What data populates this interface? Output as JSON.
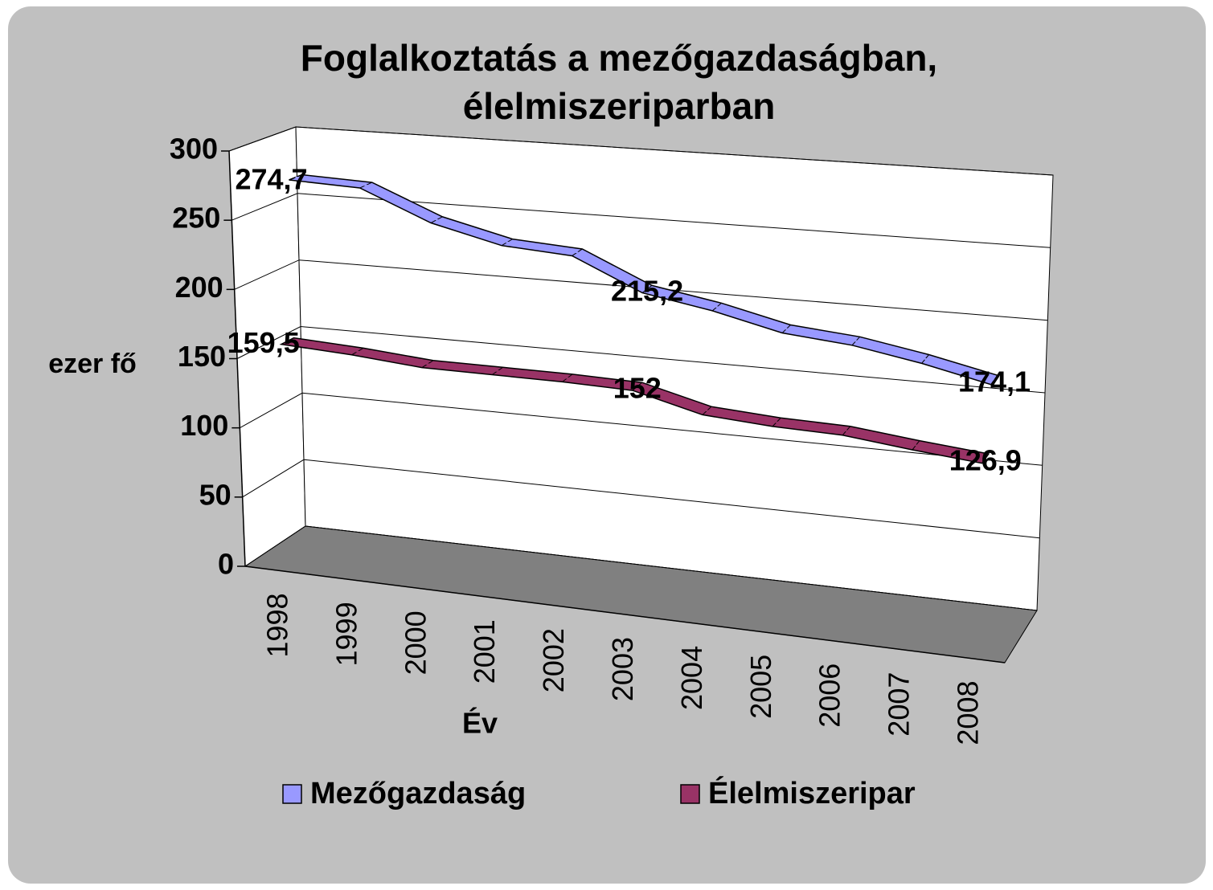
{
  "chart_data": {
    "type": "line3d",
    "title": "Foglalkoztatás a mezőgazdaságban, élelmiszeriparban",
    "y_label": "ezer fő",
    "x_label": "Év",
    "categories": [
      "1998",
      "1999",
      "2000",
      "2001",
      "2002",
      "2003",
      "2004",
      "2005",
      "2006",
      "2007",
      "2008"
    ],
    "series": [
      {
        "name": "Mezőgazdaság",
        "color": "#9999ff",
        "values": [
          274.7,
          273,
          252,
          240,
          237,
          215.2,
          207,
          196,
          192,
          184,
          174.1
        ],
        "value_labels": [
          "274,7",
          null,
          null,
          null,
          null,
          "215,2",
          null,
          null,
          null,
          null,
          "174,1"
        ]
      },
      {
        "name": "Élelmiszeripar",
        "color": "#993366",
        "values": [
          159.5,
          157,
          153,
          153,
          153,
          152,
          140,
          137,
          136,
          131,
          126.9
        ],
        "value_labels": [
          "159,5",
          null,
          null,
          null,
          null,
          "152",
          null,
          null,
          null,
          null,
          "126,9"
        ]
      }
    ],
    "ylim": [
      0,
      300
    ],
    "yticks": [
      0,
      50,
      100,
      150,
      200,
      250,
      300
    ],
    "grid": true
  }
}
